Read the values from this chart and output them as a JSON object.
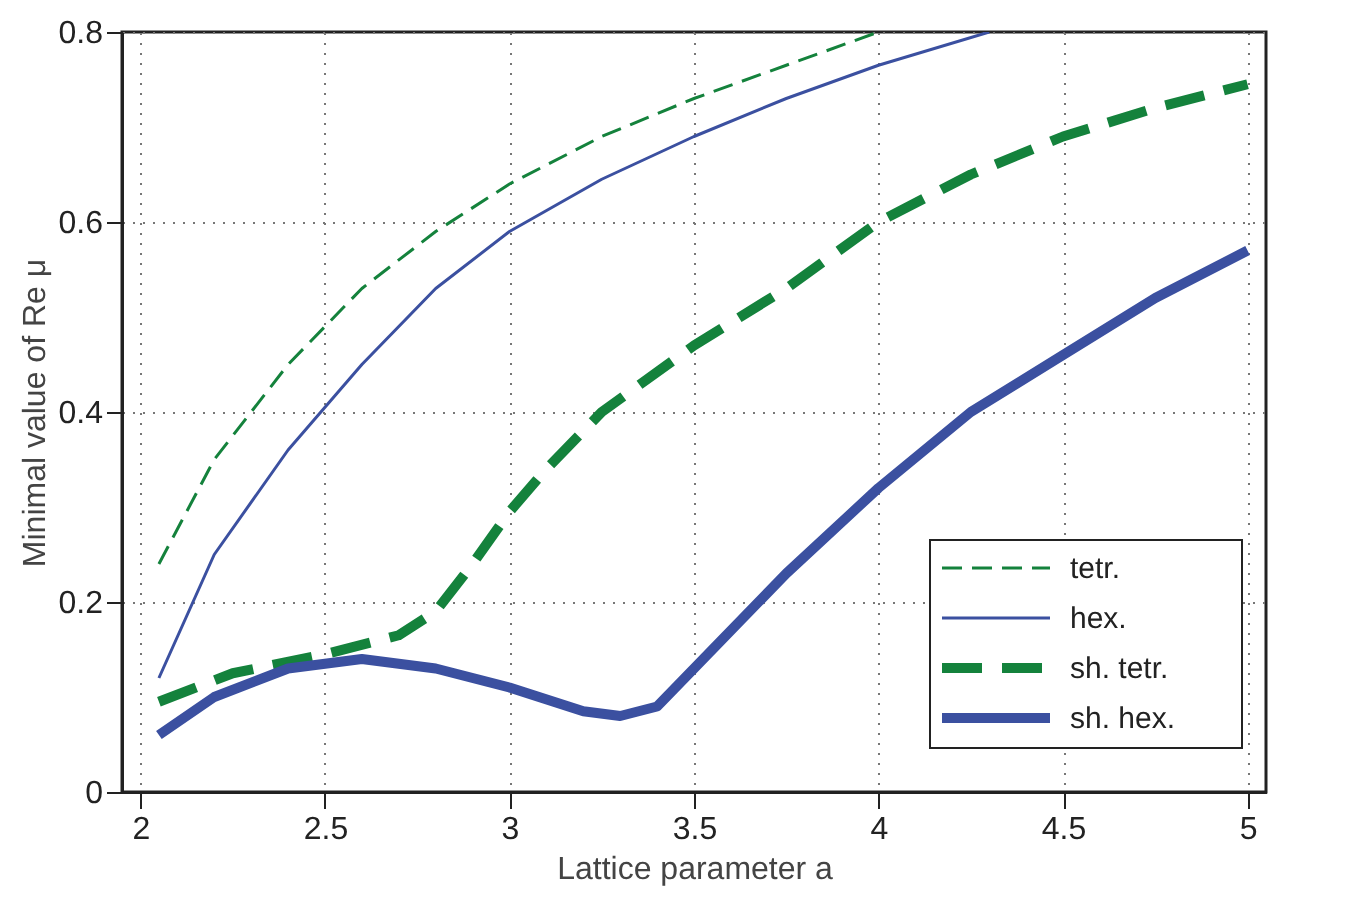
{
  "chart_data": {
    "type": "line",
    "xlabel": "Lattice parameter a",
    "ylabel": "Minimal value of  Re μ",
    "xlim": [
      1.95,
      5.05
    ],
    "ylim": [
      0,
      0.8
    ],
    "xticks": [
      {
        "value": 2,
        "label": "2"
      },
      2.5,
      {
        "value": 3,
        "label": "3"
      },
      3.5,
      {
        "value": 4,
        "label": "4"
      },
      4.5,
      {
        "value": 5,
        "label": "5"
      }
    ],
    "yticks": [
      {
        "value": 0,
        "label": "0"
      },
      0.2,
      0.4,
      0.6,
      0.8
    ],
    "grid": true,
    "legend": "bottom right",
    "marker": "none",
    "series": [
      {
        "name": "tetr.",
        "color": "#14823c",
        "line_style": "dashed",
        "x": [
          2.05,
          2.2,
          2.4,
          2.6,
          2.8,
          3.0,
          3.25,
          3.5,
          3.75,
          4.0
        ],
        "values": [
          0.24,
          0.35,
          0.45,
          0.53,
          0.59,
          0.64,
          0.69,
          0.73,
          0.765,
          0.8
        ]
      },
      {
        "name": "hex.",
        "color": "#3b50a0",
        "line_style": "solid",
        "x": [
          2.05,
          2.2,
          2.4,
          2.6,
          2.8,
          3.0,
          3.25,
          3.5,
          3.75,
          4.0,
          4.3
        ],
        "values": [
          0.12,
          0.25,
          0.36,
          0.45,
          0.53,
          0.59,
          0.645,
          0.69,
          0.73,
          0.765,
          0.8
        ]
      },
      {
        "name": "sh. tetr.",
        "color": "#14823c",
        "line_style": "dashed",
        "x": [
          2.05,
          2.25,
          2.5,
          2.7,
          2.8,
          2.9,
          3.0,
          3.1,
          3.25,
          3.5,
          3.75,
          4.0,
          4.25,
          4.5,
          4.75,
          5.0
        ],
        "values": [
          0.095,
          0.125,
          0.145,
          0.165,
          0.19,
          0.24,
          0.295,
          0.34,
          0.4,
          0.47,
          0.53,
          0.6,
          0.65,
          0.69,
          0.72,
          0.745
        ]
      },
      {
        "name": "sh. hex.",
        "color": "#3b50a0",
        "line_style": "solid",
        "x": [
          2.05,
          2.2,
          2.4,
          2.6,
          2.8,
          3.0,
          3.2,
          3.3,
          3.4,
          3.5,
          3.75,
          4.0,
          4.25,
          4.5,
          4.75,
          5.0
        ],
        "values": [
          0.06,
          0.1,
          0.13,
          0.14,
          0.13,
          0.11,
          0.085,
          0.08,
          0.09,
          0.13,
          0.23,
          0.32,
          0.4,
          0.46,
          0.52,
          0.57
        ]
      }
    ]
  }
}
